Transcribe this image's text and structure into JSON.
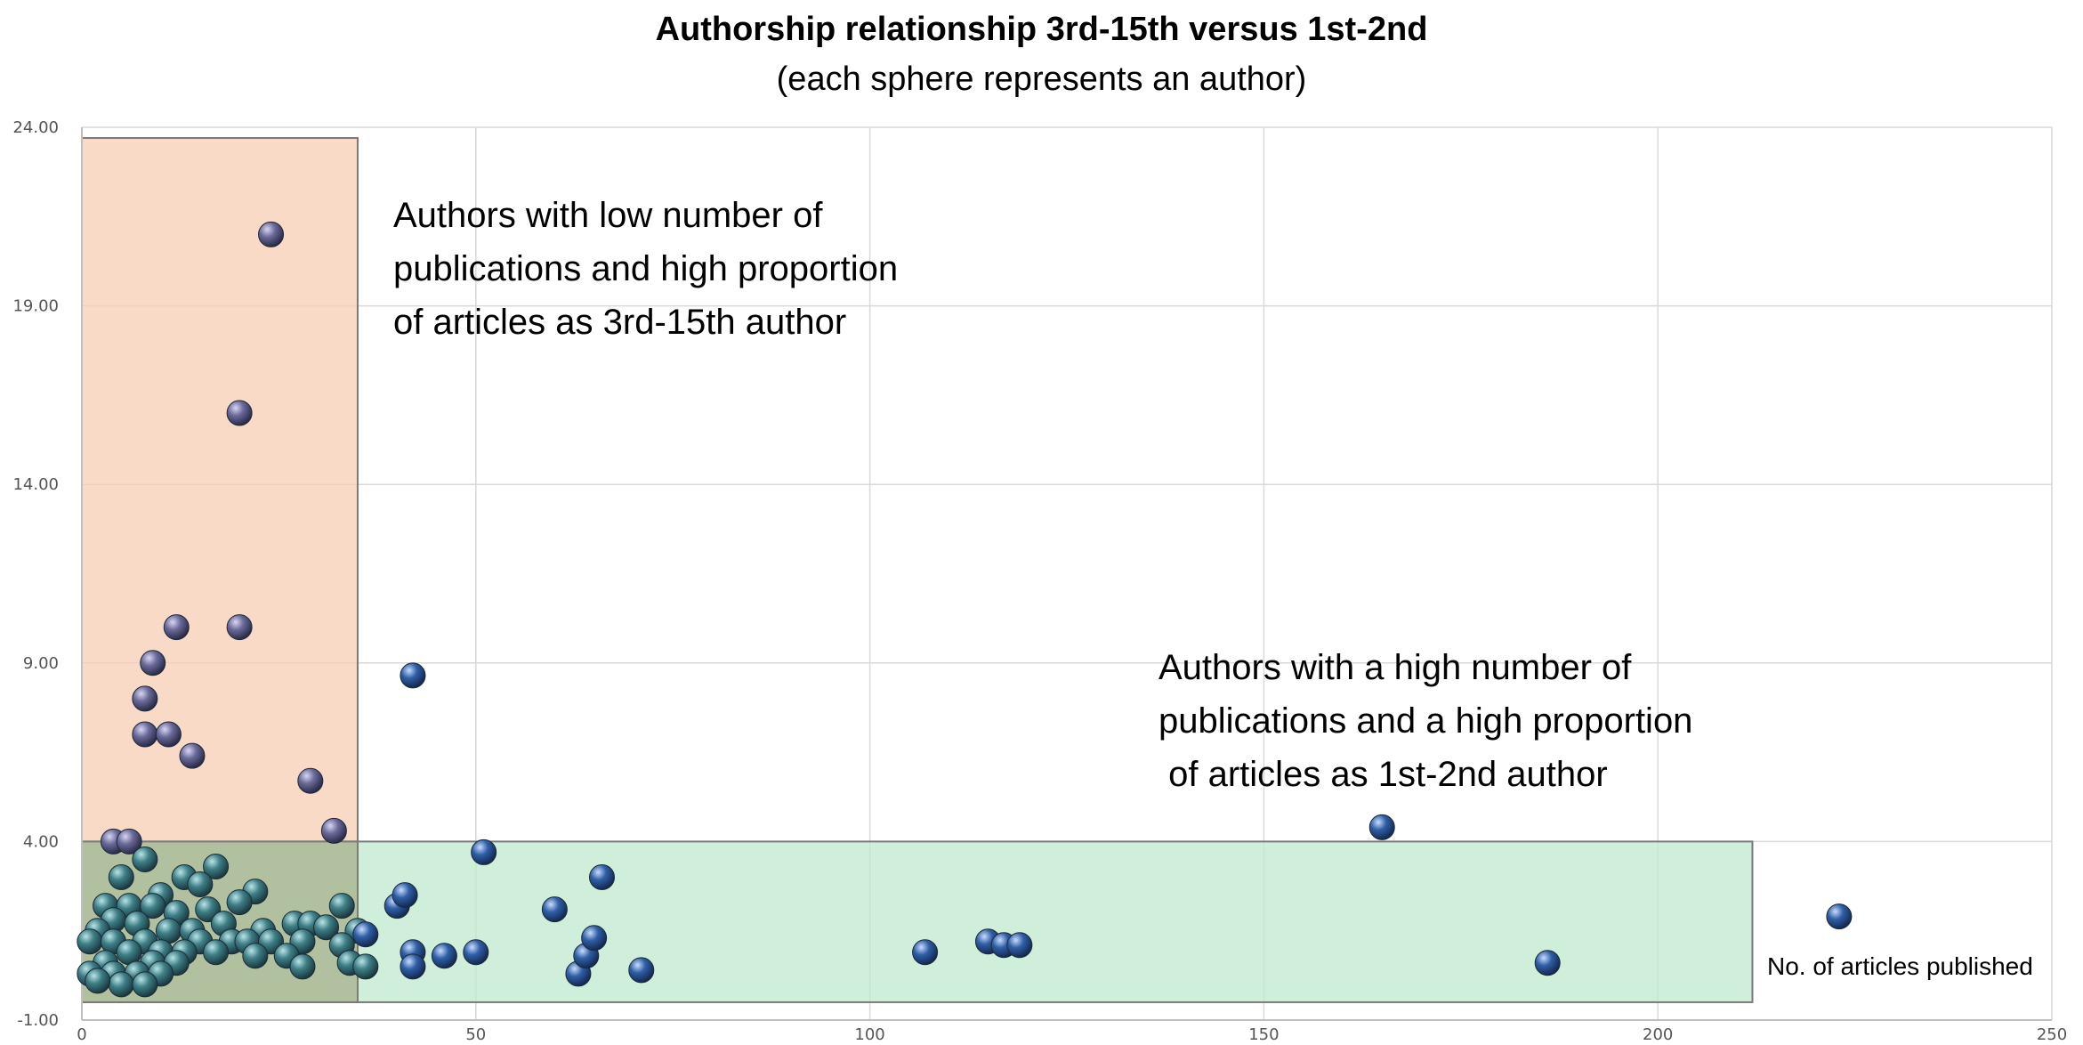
{
  "chart_data": {
    "type": "scatter",
    "title": "Authorship relationship 3rd-15th versus 1st-2nd",
    "subtitle": "(each sphere represents an author)",
    "xlabel": "No. of articles published",
    "ylabel": "",
    "xlim": [
      0,
      250
    ],
    "ylim": [
      -1,
      24
    ],
    "x_ticks": [
      "0",
      "50",
      "100",
      "150",
      "200",
      "250"
    ],
    "y_ticks": [
      "-1.00",
      "4.00",
      "9.00",
      "14.00",
      "19.00",
      "24.00"
    ],
    "grid": true,
    "colors": {
      "sphere_purple": "#6a6a9a",
      "sphere_teal": "#3e7f86",
      "sphere_blue": "#2f5fa6",
      "region_low": "#f7cdb4",
      "region_high": "#bfeace",
      "region_overlap": "#aebd9a"
    },
    "regions": [
      {
        "name": "low-publications-high-3rd-15th",
        "x": [
          0,
          35
        ],
        "y": [
          -0.5,
          23.7
        ]
      },
      {
        "name": "high-publications-high-1st-2nd",
        "x": [
          0,
          212
        ],
        "y": [
          -0.5,
          4.0
        ]
      }
    ],
    "annotations": [
      {
        "name": "low",
        "lines": [
          "Authors with low number of",
          "publications and high proportion",
          "of articles as 3rd-15th author"
        ]
      },
      {
        "name": "high",
        "lines": [
          "Authors with a high number of",
          "publications and a high proportion",
          " of articles as 1st-2nd author"
        ]
      }
    ],
    "points": [
      {
        "x": 24,
        "y": 21.0,
        "c": "purple"
      },
      {
        "x": 20,
        "y": 16.0,
        "c": "purple"
      },
      {
        "x": 12,
        "y": 10.0,
        "c": "purple"
      },
      {
        "x": 20,
        "y": 10.0,
        "c": "purple"
      },
      {
        "x": 9,
        "y": 9.0,
        "c": "purple"
      },
      {
        "x": 8,
        "y": 8.0,
        "c": "purple"
      },
      {
        "x": 8,
        "y": 7.0,
        "c": "purple"
      },
      {
        "x": 11,
        "y": 7.0,
        "c": "purple"
      },
      {
        "x": 14,
        "y": 6.4,
        "c": "purple"
      },
      {
        "x": 29,
        "y": 5.7,
        "c": "purple"
      },
      {
        "x": 32,
        "y": 4.3,
        "c": "purple"
      },
      {
        "x": 4,
        "y": 4.0,
        "c": "purple"
      },
      {
        "x": 6,
        "y": 4.0,
        "c": "purple"
      },
      {
        "x": 42,
        "y": 8.65,
        "c": "blue"
      },
      {
        "x": 8,
        "y": 3.5,
        "c": "teal"
      },
      {
        "x": 17,
        "y": 3.3,
        "c": "teal"
      },
      {
        "x": 5,
        "y": 3.0,
        "c": "teal"
      },
      {
        "x": 13,
        "y": 3.0,
        "c": "teal"
      },
      {
        "x": 15,
        "y": 2.8,
        "c": "teal"
      },
      {
        "x": 22,
        "y": 2.6,
        "c": "teal"
      },
      {
        "x": 10,
        "y": 2.5,
        "c": "teal"
      },
      {
        "x": 20,
        "y": 2.3,
        "c": "teal"
      },
      {
        "x": 3,
        "y": 2.2,
        "c": "teal"
      },
      {
        "x": 6,
        "y": 2.2,
        "c": "teal"
      },
      {
        "x": 9,
        "y": 2.2,
        "c": "teal"
      },
      {
        "x": 16,
        "y": 2.1,
        "c": "teal"
      },
      {
        "x": 12,
        "y": 2.0,
        "c": "teal"
      },
      {
        "x": 33,
        "y": 2.2,
        "c": "teal"
      },
      {
        "x": 4,
        "y": 1.8,
        "c": "teal"
      },
      {
        "x": 7,
        "y": 1.7,
        "c": "teal"
      },
      {
        "x": 18,
        "y": 1.7,
        "c": "teal"
      },
      {
        "x": 27,
        "y": 1.7,
        "c": "teal"
      },
      {
        "x": 29,
        "y": 1.7,
        "c": "teal"
      },
      {
        "x": 2,
        "y": 1.5,
        "c": "teal"
      },
      {
        "x": 11,
        "y": 1.5,
        "c": "teal"
      },
      {
        "x": 14,
        "y": 1.5,
        "c": "teal"
      },
      {
        "x": 23,
        "y": 1.5,
        "c": "teal"
      },
      {
        "x": 31,
        "y": 1.6,
        "c": "teal"
      },
      {
        "x": 35,
        "y": 1.5,
        "c": "teal"
      },
      {
        "x": 1,
        "y": 1.2,
        "c": "teal"
      },
      {
        "x": 4,
        "y": 1.2,
        "c": "teal"
      },
      {
        "x": 8,
        "y": 1.2,
        "c": "teal"
      },
      {
        "x": 15,
        "y": 1.2,
        "c": "teal"
      },
      {
        "x": 19,
        "y": 1.2,
        "c": "teal"
      },
      {
        "x": 21,
        "y": 1.2,
        "c": "teal"
      },
      {
        "x": 24,
        "y": 1.2,
        "c": "teal"
      },
      {
        "x": 28,
        "y": 1.2,
        "c": "teal"
      },
      {
        "x": 33,
        "y": 1.1,
        "c": "teal"
      },
      {
        "x": 6,
        "y": 0.9,
        "c": "teal"
      },
      {
        "x": 10,
        "y": 0.9,
        "c": "teal"
      },
      {
        "x": 13,
        "y": 0.9,
        "c": "teal"
      },
      {
        "x": 17,
        "y": 0.9,
        "c": "teal"
      },
      {
        "x": 22,
        "y": 0.8,
        "c": "teal"
      },
      {
        "x": 26,
        "y": 0.8,
        "c": "teal"
      },
      {
        "x": 3,
        "y": 0.6,
        "c": "teal"
      },
      {
        "x": 9,
        "y": 0.6,
        "c": "teal"
      },
      {
        "x": 12,
        "y": 0.6,
        "c": "teal"
      },
      {
        "x": 28,
        "y": 0.5,
        "c": "teal"
      },
      {
        "x": 34,
        "y": 0.6,
        "c": "teal"
      },
      {
        "x": 36,
        "y": 0.5,
        "c": "teal"
      },
      {
        "x": 1,
        "y": 0.3,
        "c": "teal"
      },
      {
        "x": 4,
        "y": 0.3,
        "c": "teal"
      },
      {
        "x": 7,
        "y": 0.3,
        "c": "teal"
      },
      {
        "x": 10,
        "y": 0.3,
        "c": "teal"
      },
      {
        "x": 5,
        "y": 0.0,
        "c": "teal"
      },
      {
        "x": 8,
        "y": 0.0,
        "c": "teal"
      },
      {
        "x": 2,
        "y": 0.1,
        "c": "teal"
      },
      {
        "x": 36,
        "y": 1.4,
        "c": "blue"
      },
      {
        "x": 40,
        "y": 2.2,
        "c": "blue"
      },
      {
        "x": 41,
        "y": 2.5,
        "c": "blue"
      },
      {
        "x": 42,
        "y": 0.9,
        "c": "blue"
      },
      {
        "x": 42,
        "y": 0.5,
        "c": "blue"
      },
      {
        "x": 46,
        "y": 0.8,
        "c": "blue"
      },
      {
        "x": 50,
        "y": 0.9,
        "c": "blue"
      },
      {
        "x": 51,
        "y": 3.7,
        "c": "blue"
      },
      {
        "x": 60,
        "y": 2.1,
        "c": "blue"
      },
      {
        "x": 63,
        "y": 0.3,
        "c": "blue"
      },
      {
        "x": 64,
        "y": 0.8,
        "c": "blue"
      },
      {
        "x": 65,
        "y": 1.3,
        "c": "blue"
      },
      {
        "x": 66,
        "y": 3.0,
        "c": "blue"
      },
      {
        "x": 71,
        "y": 0.4,
        "c": "blue"
      },
      {
        "x": 107,
        "y": 0.9,
        "c": "blue"
      },
      {
        "x": 115,
        "y": 1.2,
        "c": "blue"
      },
      {
        "x": 117,
        "y": 1.1,
        "c": "blue"
      },
      {
        "x": 119,
        "y": 1.1,
        "c": "blue"
      },
      {
        "x": 165,
        "y": 4.4,
        "c": "blue"
      },
      {
        "x": 186,
        "y": 0.6,
        "c": "blue"
      },
      {
        "x": 223,
        "y": 1.9,
        "c": "blue"
      }
    ]
  }
}
